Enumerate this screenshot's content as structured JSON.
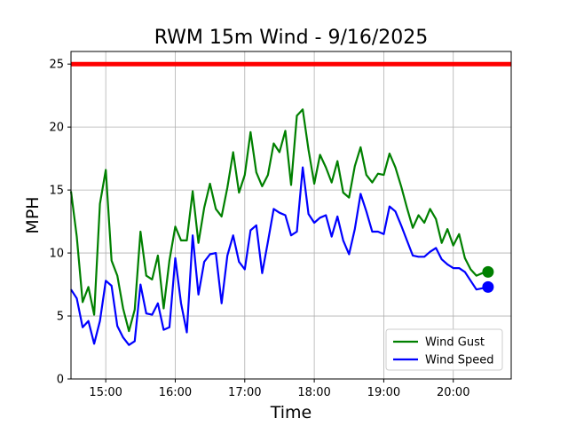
{
  "chart_data": {
    "type": "line",
    "title": "RWM 15m Wind - 9/16/2025",
    "xlabel": "Time",
    "ylabel": "MPH",
    "xlim": [
      "14:30",
      "20:50"
    ],
    "ylim": [
      0,
      26
    ],
    "x_ticks": [
      "15:00",
      "16:00",
      "17:00",
      "18:00",
      "19:00",
      "20:00"
    ],
    "y_ticks": [
      0,
      5,
      10,
      15,
      20,
      25
    ],
    "grid": true,
    "legend_position": "lower-right",
    "reference_line": {
      "value": 25,
      "color": "#ff0000"
    },
    "x": [
      "14:30",
      "14:35",
      "14:40",
      "14:45",
      "14:50",
      "14:55",
      "15:00",
      "15:05",
      "15:10",
      "15:15",
      "15:20",
      "15:25",
      "15:30",
      "15:35",
      "15:40",
      "15:45",
      "15:50",
      "15:55",
      "16:00",
      "16:05",
      "16:10",
      "16:15",
      "16:20",
      "16:25",
      "16:30",
      "16:35",
      "16:40",
      "16:45",
      "16:50",
      "16:55",
      "17:00",
      "17:05",
      "17:10",
      "17:15",
      "17:20",
      "17:25",
      "17:30",
      "17:35",
      "17:40",
      "17:45",
      "17:50",
      "17:55",
      "18:00",
      "18:05",
      "18:10",
      "18:15",
      "18:20",
      "18:25",
      "18:30",
      "18:35",
      "18:40",
      "18:45",
      "18:50",
      "18:55",
      "19:00",
      "19:05",
      "19:10",
      "19:15",
      "19:20",
      "19:25",
      "19:30",
      "19:35",
      "19:40",
      "19:45",
      "19:50",
      "19:55",
      "20:00",
      "20:05",
      "20:10",
      "20:15",
      "20:20",
      "20:25",
      "20:30"
    ],
    "series": [
      {
        "name": "Wind Gust",
        "color": "#008000",
        "values": [
          14.9,
          11.3,
          6.1,
          7.3,
          5.1,
          13.9,
          16.6,
          9.4,
          8.2,
          5.6,
          3.8,
          5.5,
          11.7,
          8.2,
          7.9,
          9.8,
          5.6,
          9.4,
          12.1,
          11.0,
          11.0,
          14.9,
          10.8,
          13.6,
          15.5,
          13.5,
          12.9,
          15.2,
          18.0,
          14.8,
          16.2,
          19.6,
          16.4,
          15.3,
          16.2,
          18.7,
          18.0,
          19.7,
          15.4,
          20.9,
          21.4,
          18.2,
          15.5,
          17.8,
          16.8,
          15.6,
          17.3,
          14.8,
          14.4,
          16.9,
          18.4,
          16.2,
          15.6,
          16.3,
          16.2,
          17.9,
          16.8,
          15.3,
          13.6,
          12.0,
          13.0,
          12.4,
          13.5,
          12.7,
          10.8,
          11.9,
          10.6,
          11.5,
          9.6,
          8.7,
          8.2,
          8.4,
          8.5
        ]
      },
      {
        "name": "Wind Speed",
        "color": "#0000ff",
        "values": [
          7.1,
          6.4,
          4.1,
          4.6,
          2.8,
          4.6,
          7.8,
          7.4,
          4.2,
          3.3,
          2.7,
          3.0,
          7.5,
          5.2,
          5.1,
          6.0,
          3.9,
          4.1,
          9.6,
          6.0,
          3.7,
          11.4,
          6.7,
          9.3,
          9.9,
          10.0,
          6.0,
          9.8,
          11.4,
          9.3,
          8.7,
          11.8,
          12.2,
          8.4,
          10.9,
          13.5,
          13.2,
          13.0,
          11.4,
          11.7,
          16.8,
          13.1,
          12.4,
          12.8,
          13.0,
          11.3,
          12.9,
          11.0,
          9.9,
          11.9,
          14.7,
          13.3,
          11.7,
          11.7,
          11.5,
          13.7,
          13.3,
          12.2,
          11.0,
          9.8,
          9.7,
          9.7,
          10.1,
          10.4,
          9.5,
          9.1,
          8.8,
          8.8,
          8.5,
          7.8,
          7.1,
          7.2,
          7.3
        ]
      }
    ],
    "end_markers": [
      {
        "series": "Wind Gust",
        "x": "20:30",
        "y": 8.5,
        "color": "#008000"
      },
      {
        "series": "Wind Speed",
        "x": "20:30",
        "y": 7.3,
        "color": "#0000ff"
      }
    ]
  }
}
